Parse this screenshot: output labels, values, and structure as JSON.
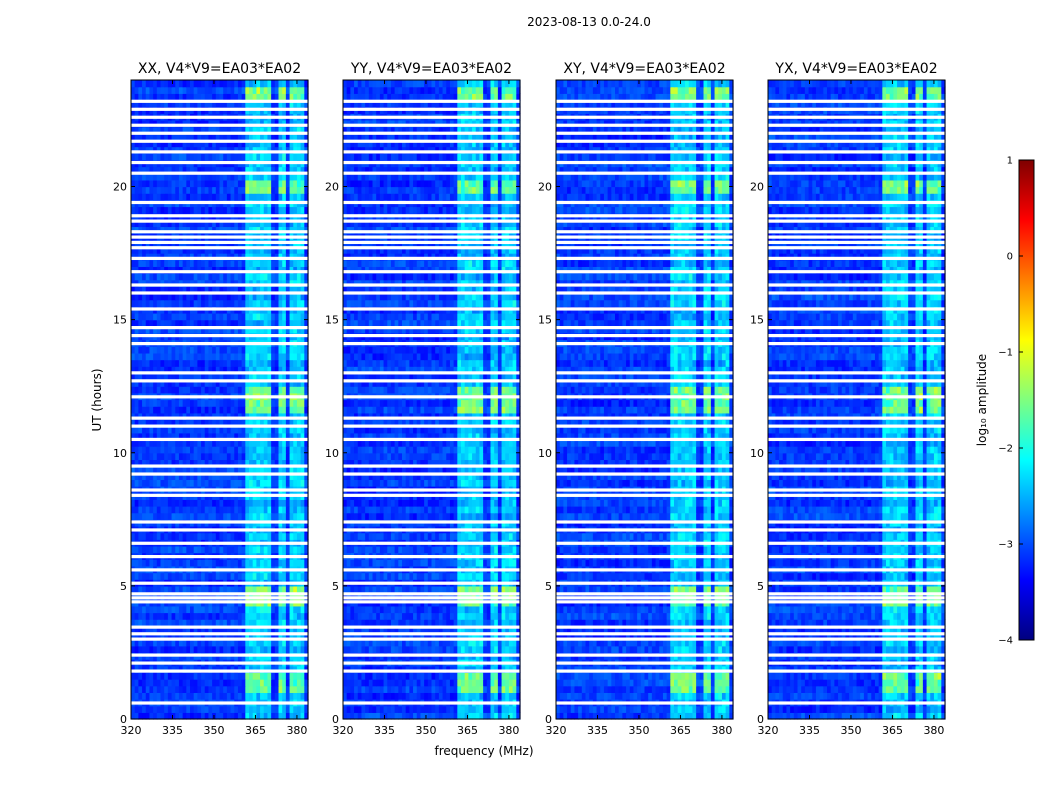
{
  "figure_title": "2023-08-13 0.0-24.0",
  "chart_data": {
    "type": "heatmap",
    "title": "2023-08-13 0.0-24.0",
    "xlabel": "frequency (MHz)",
    "ylabel": "UT (hours)",
    "xlim": [
      320,
      384
    ],
    "ylim": [
      0,
      24
    ],
    "xticks": [
      320,
      335,
      350,
      365,
      380
    ],
    "yticks": [
      0,
      5,
      10,
      15,
      20
    ],
    "panels": [
      {
        "name": "XX",
        "title": "XX, V4*V9=EA03*EA02"
      },
      {
        "name": "YY",
        "title": "YY, V4*V9=EA03*EA02"
      },
      {
        "name": "XY",
        "title": "XY, V4*V9=EA03*EA02"
      },
      {
        "name": "YX",
        "title": "YX, V4*V9=EA03*EA02"
      }
    ],
    "background_log10_amplitude": -3.1,
    "rfi_band_mhz": [
      [
        362,
        366
      ],
      [
        367,
        371
      ],
      [
        373,
        376
      ],
      [
        378,
        382
      ]
    ],
    "rfi_peak_hours": [
      [
        23.3,
        23.7
      ],
      [
        19.7,
        20.3
      ],
      [
        11.5,
        12.6
      ],
      [
        4.2,
        4.9
      ],
      [
        1.0,
        1.8
      ]
    ],
    "flagged_hours": [
      0.6,
      1.8,
      2.1,
      2.4,
      3.0,
      3.2,
      3.45,
      4.4,
      4.55,
      4.7,
      5.1,
      5.6,
      6.1,
      6.6,
      7.1,
      7.4,
      8.4,
      8.6,
      9.2,
      9.5,
      10.5,
      11.0,
      11.3,
      12.1,
      12.7,
      13.0,
      14.1,
      14.4,
      14.7,
      15.4,
      16.0,
      16.3,
      16.8,
      17.3,
      17.7,
      17.9,
      18.1,
      18.3,
      18.7,
      18.9,
      19.4,
      20.5,
      20.9,
      21.3,
      21.7,
      22.0,
      22.3,
      22.6,
      22.9,
      23.2
    ],
    "colorbar": {
      "label": "log₁₀ amplitude",
      "min": -4,
      "max": 1,
      "ticks": [
        1,
        0,
        -1,
        -2,
        -3,
        -4
      ],
      "colormap": "jet",
      "colors": [
        "#00007f",
        "#0000ff",
        "#007fff",
        "#00ffff",
        "#7fff7f",
        "#ffff00",
        "#ff7f00",
        "#ff0000",
        "#7f0000"
      ]
    }
  }
}
